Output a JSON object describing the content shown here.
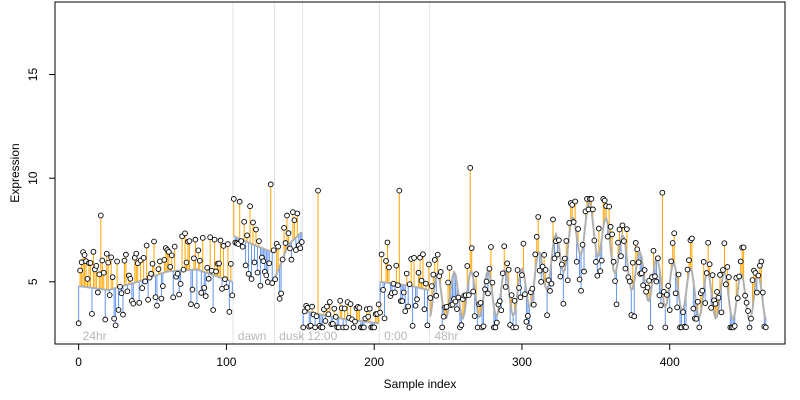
{
  "chart_data": {
    "type": "scatter",
    "title": "",
    "xlabel": "Sample index",
    "ylabel": "Expression",
    "xlim": [
      -16,
      478
    ],
    "ylim": [
      2.0,
      18.5
    ],
    "x_ticks": [
      0,
      100,
      200,
      300,
      400
    ],
    "y_ticks": [
      5,
      10,
      15
    ],
    "grid": false,
    "legend": "none",
    "colors": {
      "up_residual": "#ffa500",
      "down_residual": "#6495ed",
      "fitted_line": "#b0b0b0",
      "point_stroke": "#000000",
      "point_fill": "#ffffff",
      "region_line": "#e3e3e3",
      "region_label": "#b8b8b8"
    },
    "regions": [
      {
        "label": "24hr",
        "start": 0,
        "end": 104
      },
      {
        "label": "dawn",
        "start": 105,
        "end": 132
      },
      {
        "label": "dusk",
        "start": 133,
        "end": 151
      },
      {
        "label": "12:00",
        "start": 152,
        "end": 203
      },
      {
        "label": "0:00",
        "start": 204,
        "end": 237
      },
      {
        "label": "48hr",
        "start": 238,
        "end": 465
      }
    ],
    "region_separators": [
      104.5,
      132.5,
      151.5,
      203.5,
      237.5
    ],
    "n_points": 466,
    "fitted_segments": [
      {
        "x": [
          0,
          20,
          40,
          60,
          80,
          104
        ],
        "y": [
          4.8,
          4.6,
          5.0,
          5.5,
          5.6,
          5.0
        ]
      },
      {
        "x": [
          105,
          118,
          132
        ],
        "y": [
          7.2,
          6.8,
          6.4
        ]
      },
      {
        "x": [
          133,
          142,
          151
        ],
        "y": [
          5.2,
          6.8,
          7.4
        ]
      },
      {
        "x": [
          152,
          165,
          180,
          203
        ],
        "y": [
          3.6,
          3.4,
          3.2,
          3.0
        ]
      },
      {
        "x": [
          204,
          215,
          225,
          237
        ],
        "y": [
          5.0,
          4.9,
          4.8,
          4.6
        ]
      },
      {
        "x": [
          238,
          270,
          300,
          345,
          380,
          420,
          465
        ],
        "y": [
          4.3,
          4.4,
          4.5,
          7.8,
          5.3,
          4.4,
          4.2
        ]
      }
    ],
    "point_profile": [
      {
        "x_from": 0,
        "x_to": 104,
        "base": 5.0,
        "spread": 1.8,
        "wave": 0.0
      },
      {
        "x_from": 105,
        "x_to": 132,
        "base": 7.6,
        "spread": 2.0,
        "wave": 0.0
      },
      {
        "x_from": 133,
        "x_to": 151,
        "base": 6.4,
        "spread": 1.6,
        "wave": 0.0
      },
      {
        "x_from": 152,
        "x_to": 203,
        "base": 3.3,
        "spread": 1.0,
        "wave": 0.0
      },
      {
        "x_from": 204,
        "x_to": 237,
        "base": 5.6,
        "spread": 2.0,
        "wave": 0.0
      },
      {
        "x_from": 238,
        "x_to": 465,
        "base": 4.6,
        "spread": 1.6,
        "wave": 1.4
      }
    ],
    "highlighted_points": [
      {
        "x": 15,
        "y": 8.2
      },
      {
        "x": 130,
        "y": 9.7
      },
      {
        "x": 162,
        "y": 9.4
      },
      {
        "x": 217,
        "y": 9.4
      },
      {
        "x": 265,
        "y": 10.5
      },
      {
        "x": 343,
        "y": 8.4
      },
      {
        "x": 395,
        "y": 9.3
      }
    ]
  }
}
